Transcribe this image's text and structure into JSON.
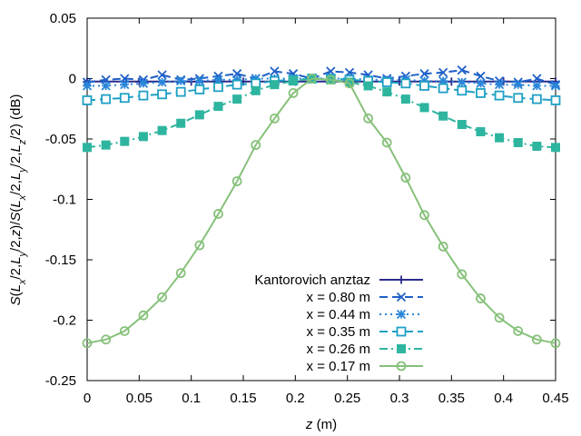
{
  "chart_data": {
    "type": "line",
    "xlabel": "z (m)",
    "ylabel": "S(Lx/2,Ly/2,z)/S(Lx/2,Ly/2,Lz/2) (dB)",
    "xlim": [
      0,
      0.45
    ],
    "ylim": [
      -0.25,
      0.05
    ],
    "x_ticks": [
      0,
      0.05,
      0.1,
      0.15,
      0.2,
      0.25,
      0.3,
      0.35,
      0.4,
      0.45
    ],
    "x_tick_labels": [
      "0",
      "0.05",
      "0.1",
      "0.15",
      "0.2",
      "0.25",
      "0.3",
      "0.35",
      "0.4",
      "0.45"
    ],
    "y_ticks": [
      -0.25,
      -0.2,
      -0.15,
      -0.1,
      -0.05,
      0,
      0.05
    ],
    "y_tick_labels": [
      "-0.25",
      "-0.2",
      "-0.15",
      "-0.1",
      "-0.05",
      "0",
      "0.05"
    ],
    "grid": false,
    "legend_position": "bottom-center",
    "x": [
      0,
      0.018,
      0.036,
      0.054,
      0.072,
      0.09,
      0.108,
      0.126,
      0.144,
      0.162,
      0.18,
      0.198,
      0.216,
      0.234,
      0.252,
      0.27,
      0.288,
      0.306,
      0.324,
      0.342,
      0.36,
      0.378,
      0.396,
      0.414,
      0.432,
      0.45
    ],
    "series": [
      {
        "name": "Kantorovich anztaz",
        "color": "#2b2b8c",
        "dash": "solid",
        "marker": "plus",
        "x": [
          0,
          0.45
        ],
        "values": [
          -0.0025,
          -0.0025
        ]
      },
      {
        "name": "x = 0.80 m",
        "color": "#1f5fc8",
        "dash": "dash",
        "marker": "cross",
        "values": [
          -0.003,
          -0.001,
          0.0,
          -0.001,
          0.003,
          -0.001,
          0.0,
          0.002,
          0.004,
          0.0,
          0.006,
          0.004,
          0.0,
          0.006,
          0.005,
          0.003,
          0.0,
          0.002,
          0.004,
          0.005,
          0.007,
          0.002,
          -0.002,
          -0.003,
          0.0,
          -0.005
        ]
      },
      {
        "name": "x = 0.44 m",
        "color": "#2a86d9",
        "dash": "dot",
        "marker": "star",
        "values": [
          -0.006,
          -0.006,
          -0.005,
          -0.004,
          -0.003,
          -0.002,
          -0.002,
          -0.001,
          -0.001,
          0.0,
          0.0,
          0.0,
          0.0,
          0.0,
          0.0,
          -0.001,
          -0.001,
          -0.001,
          -0.002,
          -0.002,
          -0.003,
          -0.004,
          -0.005,
          -0.005,
          -0.006,
          -0.006
        ]
      },
      {
        "name": "x = 0.35 m",
        "color": "#1fa0c4",
        "dash": "dash",
        "marker": "open-square",
        "values": [
          -0.018,
          -0.017,
          -0.016,
          -0.014,
          -0.013,
          -0.011,
          -0.009,
          -0.007,
          -0.005,
          -0.004,
          -0.002,
          -0.001,
          0.0,
          0.0,
          -0.001,
          -0.002,
          -0.003,
          -0.004,
          -0.006,
          -0.008,
          -0.01,
          -0.012,
          -0.014,
          -0.016,
          -0.017,
          -0.018
        ]
      },
      {
        "name": "x = 0.26 m",
        "color": "#2eb5a0",
        "dash": "dashdot",
        "marker": "filled-square",
        "values": [
          -0.057,
          -0.055,
          -0.052,
          -0.048,
          -0.043,
          -0.037,
          -0.03,
          -0.023,
          -0.017,
          -0.01,
          -0.005,
          -0.002,
          0.0,
          -0.001,
          -0.003,
          -0.006,
          -0.011,
          -0.017,
          -0.024,
          -0.031,
          -0.038,
          -0.044,
          -0.049,
          -0.053,
          -0.056,
          -0.057
        ]
      },
      {
        "name": "x = 0.17 m",
        "color": "#86c17a",
        "dash": "solid",
        "marker": "open-circle",
        "values": [
          -0.219,
          -0.216,
          -0.209,
          -0.196,
          -0.181,
          -0.161,
          -0.138,
          -0.112,
          -0.085,
          -0.055,
          -0.033,
          -0.012,
          0.0,
          -0.001,
          -0.004,
          -0.033,
          -0.053,
          -0.082,
          -0.113,
          -0.139,
          -0.162,
          -0.182,
          -0.198,
          -0.209,
          -0.216,
          -0.219
        ]
      }
    ]
  }
}
